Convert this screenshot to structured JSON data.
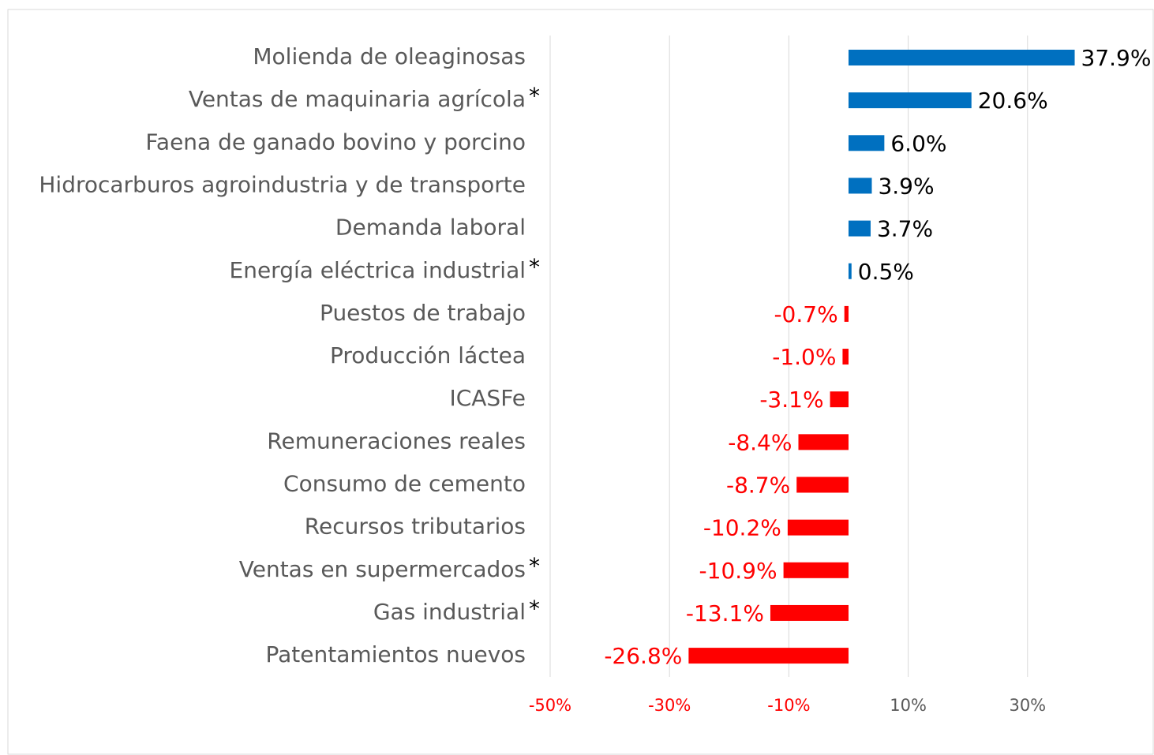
{
  "chart_data": {
    "type": "bar",
    "orientation": "horizontal",
    "categories": [
      "Molienda de oleaginosas",
      "Ventas de maquinaria agrícola",
      "Faena de ganado bovino y porcino",
      "Hidrocarburos agroindustria y de transporte",
      "Demanda laboral",
      "Energía eléctrica industrial",
      "Puestos de trabajo",
      "Producción láctea",
      "ICASFe",
      "Remuneraciones reales",
      "Consumo de cemento",
      "Recursos tributarios",
      "Ventas en supermercados",
      "Gas industrial",
      "Patentamientos nuevos"
    ],
    "markers": [
      null,
      "*",
      null,
      null,
      null,
      "*",
      null,
      null,
      null,
      null,
      null,
      null,
      "*",
      "*",
      null
    ],
    "values": [
      37.9,
      20.6,
      6.0,
      3.9,
      3.7,
      0.5,
      -0.7,
      -1.0,
      -3.1,
      -8.4,
      -8.7,
      -10.2,
      -10.9,
      -13.1,
      -26.8
    ],
    "value_labels": [
      "37.9%",
      "20.6%",
      "6.0%",
      "3.9%",
      "3.7%",
      "0.5%",
      "-0.7%",
      "-1.0%",
      "-3.1%",
      "-8.4%",
      "-8.7%",
      "-10.2%",
      "-10.9%",
      "-13.1%",
      "-26.8%"
    ],
    "color_positive": "#0070c0",
    "color_negative": "#ff0000",
    "label_color_positive": "#000000",
    "label_color_negative": "#ff0000",
    "xlim": [
      -50,
      50
    ],
    "xticks": [
      {
        "value": -50,
        "label": "-50%"
      },
      {
        "value": -30,
        "label": "-30%"
      },
      {
        "value": -10,
        "label": "-10%"
      },
      {
        "value": 10,
        "label": "10%"
      },
      {
        "value": 30,
        "label": "30%"
      }
    ],
    "xtick_color_negative": "#ff0000",
    "xtick_color_positive": "#595959",
    "grid": true
  }
}
